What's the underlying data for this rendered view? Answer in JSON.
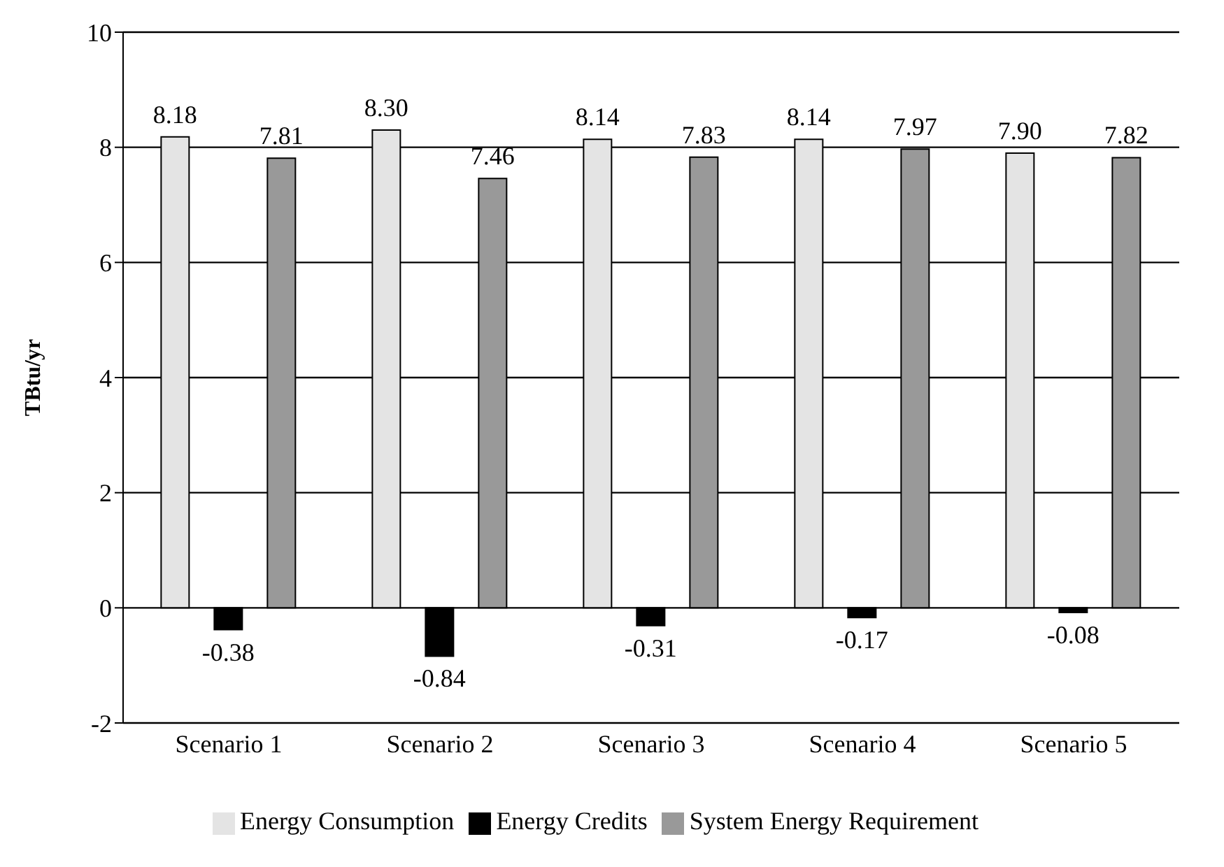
{
  "chart_data": {
    "type": "bar",
    "ylabel": "TBtu/yr",
    "categories": [
      "Scenario 1",
      "Scenario 2",
      "Scenario 3",
      "Scenario 4",
      "Scenario 5"
    ],
    "series": [
      {
        "name": "Energy Consumption",
        "color": "#e4e4e4",
        "values": [
          8.18,
          8.3,
          8.14,
          8.14,
          7.9
        ],
        "value_labels": [
          "8.18",
          "8.30",
          "8.14",
          "8.14",
          "7.90"
        ]
      },
      {
        "name": "Energy Credits",
        "color": "#000000",
        "values": [
          -0.38,
          -0.84,
          -0.31,
          -0.17,
          -0.08
        ],
        "value_labels": [
          "-0.38",
          "-0.84",
          "-0.31",
          "-0.17",
          "-0.08"
        ]
      },
      {
        "name": "System Energy Requirement",
        "color": "#999999",
        "values": [
          7.81,
          7.46,
          7.83,
          7.97,
          7.82
        ],
        "value_labels": [
          "7.81",
          "7.46",
          "7.83",
          "7.97",
          "7.82"
        ]
      }
    ],
    "ylim": [
      -2,
      10
    ],
    "yticks": [
      -2,
      0,
      2,
      4,
      6,
      8,
      10
    ],
    "grid": "y",
    "legend": "bottom"
  }
}
